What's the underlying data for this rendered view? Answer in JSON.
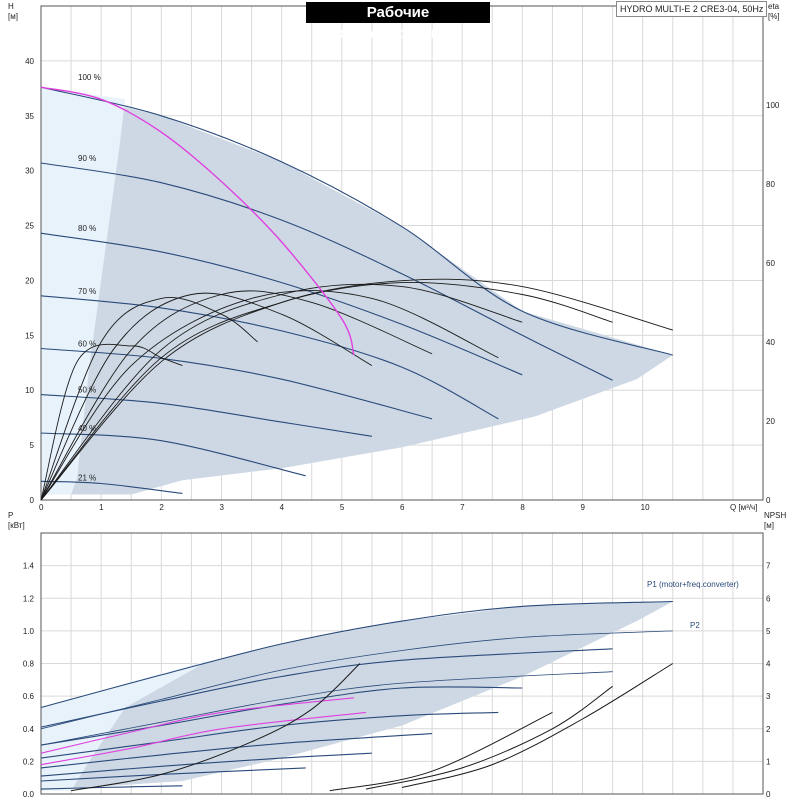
{
  "title": "Рабочие характеристики",
  "model": "HYDRO MULTI-E 2 CRE3-04, 50Hz",
  "colors": {
    "envelope": "#cdd8e4",
    "curve": "#2a4a7a",
    "magenta": "#e040e0",
    "efficiency": "#1a1a1a"
  },
  "chart_data": [
    {
      "type": "line",
      "panel": "top",
      "xlabel": "Q [м³/ч]",
      "ylabel_left": "H\n[м]",
      "ylabel_right": "eta\n[%]",
      "xlim": [
        0,
        12
      ],
      "ylim_left": [
        0,
        45
      ],
      "ylim_right": [
        0,
        125
      ],
      "x_ticks": [
        "0",
        "1",
        "2",
        "3",
        "4",
        "5",
        "6",
        "7",
        "8",
        "9",
        "10"
      ],
      "y_ticks_left": [
        "0",
        "5",
        "10",
        "15",
        "20",
        "25",
        "30",
        "35",
        "40"
      ],
      "y_ticks_right": [
        "0",
        "20",
        "40",
        "60",
        "80",
        "100"
      ],
      "speed_labels": [
        "100 %",
        "90 %",
        "80 %",
        "70 %",
        "60 %",
        "50 %",
        "40 %",
        "21 %"
      ],
      "head_curves": [
        {
          "name": "100 %",
          "points": [
            [
              0,
              37.6
            ],
            [
              2,
              35
            ],
            [
              4,
              30.8
            ],
            [
              6,
              24.9
            ],
            [
              8,
              17.2
            ],
            [
              10.5,
              13.2
            ]
          ]
        },
        {
          "name": "90 %",
          "points": [
            [
              0,
              30.7
            ],
            [
              2,
              28.9
            ],
            [
              4,
              25.5
            ],
            [
              6,
              20.6
            ],
            [
              8,
              15.0
            ],
            [
              9.5,
              10.9
            ]
          ]
        },
        {
          "name": "80 %",
          "points": [
            [
              0,
              24.3
            ],
            [
              2,
              22.6
            ],
            [
              4,
              19.8
            ],
            [
              6,
              16.0
            ],
            [
              8,
              11.4
            ]
          ]
        },
        {
          "name": "70 %",
          "points": [
            [
              0,
              18.6
            ],
            [
              2,
              17.5
            ],
            [
              4,
              15.4
            ],
            [
              6,
              12.1
            ],
            [
              7.6,
              7.4
            ]
          ]
        },
        {
          "name": "60 %",
          "points": [
            [
              0,
              13.8
            ],
            [
              2,
              12.9
            ],
            [
              4,
              11.0
            ],
            [
              6.5,
              7.4
            ]
          ]
        },
        {
          "name": "50 %",
          "points": [
            [
              0,
              9.6
            ],
            [
              2,
              8.8
            ],
            [
              4,
              7.1
            ],
            [
              5.5,
              5.8
            ]
          ]
        },
        {
          "name": "40 %",
          "points": [
            [
              0,
              6.1
            ],
            [
              2,
              5.4
            ],
            [
              4.4,
              2.2
            ]
          ]
        },
        {
          "name": "21 %",
          "points": [
            [
              0,
              1.7
            ],
            [
              1,
              1.5
            ],
            [
              2.35,
              0.6
            ]
          ]
        }
      ],
      "max_power_curve": {
        "points": [
          [
            0,
            37.6
          ],
          [
            1,
            36.5
          ],
          [
            2,
            33.5
          ],
          [
            3,
            29
          ],
          [
            4,
            23.5
          ],
          [
            5,
            16.5
          ],
          [
            5.2,
            13.2
          ]
        ]
      },
      "envelope": [
        [
          0,
          37.6
        ],
        [
          2,
          35
        ],
        [
          4,
          30.8
        ],
        [
          6,
          24.9
        ],
        [
          8,
          17.2
        ],
        [
          10.5,
          13.2
        ],
        [
          9.9,
          11
        ],
        [
          8.2,
          7.6
        ],
        [
          6,
          4.8
        ],
        [
          4,
          2.9
        ],
        [
          2.35,
          1.8
        ],
        [
          1.5,
          0.5
        ],
        [
          0,
          0.5
        ]
      ],
      "efficiency_curves": [
        {
          "name": "100 %",
          "points": [
            [
              0,
              0
            ],
            [
              2,
              35
            ],
            [
              4,
              50
            ],
            [
              6,
              55.5
            ],
            [
              8,
              54
            ],
            [
              10.5,
              43
            ]
          ]
        },
        {
          "name": "90 %",
          "points": [
            [
              0,
              0
            ],
            [
              2,
              36
            ],
            [
              4,
              50
            ],
            [
              6,
              55
            ],
            [
              8,
              52
            ],
            [
              9.5,
              45
            ]
          ]
        },
        {
          "name": "80 %",
          "points": [
            [
              0,
              0
            ],
            [
              2,
              38
            ],
            [
              4,
              52
            ],
            [
              6,
              54
            ],
            [
              8,
              45
            ]
          ]
        },
        {
          "name": "70 %",
          "points": [
            [
              0,
              0
            ],
            [
              1.5,
              34
            ],
            [
              3.5,
              51
            ],
            [
              5.5,
              51
            ],
            [
              7.6,
              36
            ]
          ]
        },
        {
          "name": "60 %",
          "points": [
            [
              0,
              0
            ],
            [
              1.5,
              38
            ],
            [
              3,
              52
            ],
            [
              4.5,
              50
            ],
            [
              6.5,
              37
            ]
          ]
        },
        {
          "name": "50 %",
          "points": [
            [
              0,
              0
            ],
            [
              1.2,
              38
            ],
            [
              2.5,
              52
            ],
            [
              4,
              47
            ],
            [
              5.5,
              34
            ]
          ]
        },
        {
          "name": "40 %",
          "points": [
            [
              0,
              0
            ],
            [
              1,
              40
            ],
            [
              2,
              51
            ],
            [
              3,
              47
            ],
            [
              3.6,
              40
            ]
          ]
        },
        {
          "name": "21 %",
          "points": [
            [
              0,
              0
            ],
            [
              0.6,
              35
            ],
            [
              1.5,
              39
            ],
            [
              2,
              36
            ],
            [
              2.35,
              34
            ]
          ]
        }
      ]
    },
    {
      "type": "line",
      "panel": "bottom",
      "xlabel": "",
      "ylabel_left": "P\n[кВт]",
      "ylabel_right": "NPSH\n[м]",
      "xlim": [
        0,
        12
      ],
      "ylim_left": [
        0,
        1.6
      ],
      "ylim_right": [
        0,
        8
      ],
      "y_ticks_left": [
        "0.0",
        "0.2",
        "0.4",
        "0.6",
        "0.8",
        "1.0",
        "1.2",
        "1.4"
      ],
      "y_ticks_right": [
        "0",
        "1",
        "2",
        "3",
        "4",
        "5",
        "6",
        "7"
      ],
      "series_labels": [
        "P1 (motor+freq.converter)",
        "P2"
      ],
      "p1_curves": [
        {
          "name": "100 %",
          "points": [
            [
              0,
              0.53
            ],
            [
              2,
              0.73
            ],
            [
              4,
              0.92
            ],
            [
              6,
              1.06
            ],
            [
              8,
              1.15
            ],
            [
              10.5,
              1.18
            ]
          ]
        },
        {
          "name": "90 %",
          "points": [
            [
              0,
              0.41
            ],
            [
              2,
              0.57
            ],
            [
              4,
              0.72
            ],
            [
              6,
              0.82
            ],
            [
              9.5,
              0.89
            ]
          ]
        },
        {
          "name": "80 %",
          "points": [
            [
              0,
              0.3
            ],
            [
              2,
              0.42
            ],
            [
              4,
              0.55
            ],
            [
              6,
              0.65
            ],
            [
              8,
              0.65
            ]
          ]
        },
        {
          "name": "70 %",
          "points": [
            [
              0,
              0.22
            ],
            [
              2,
              0.32
            ],
            [
              4,
              0.42
            ],
            [
              6,
              0.48
            ],
            [
              7.6,
              0.5
            ]
          ]
        },
        {
          "name": "60 %",
          "points": [
            [
              0,
              0.16
            ],
            [
              2,
              0.24
            ],
            [
              4,
              0.31
            ],
            [
              6.5,
              0.37
            ]
          ]
        },
        {
          "name": "50 %",
          "points": [
            [
              0,
              0.11
            ],
            [
              2,
              0.17
            ],
            [
              4,
              0.22
            ],
            [
              5.5,
              0.25
            ]
          ]
        },
        {
          "name": "40 %",
          "points": [
            [
              0,
              0.08
            ],
            [
              2,
              0.12
            ],
            [
              4.4,
              0.16
            ]
          ]
        },
        {
          "name": "21 %",
          "points": [
            [
              0,
              0.03
            ],
            [
              1,
              0.04
            ],
            [
              2.35,
              0.05
            ]
          ]
        }
      ],
      "p2_curves": [
        {
          "name": "100 %",
          "points": [
            [
              0,
              0.4
            ],
            [
              2,
              0.58
            ],
            [
              4,
              0.76
            ],
            [
              6,
              0.88
            ],
            [
              8,
              0.96
            ],
            [
              10.5,
              1.0
            ]
          ]
        },
        {
          "name": "90 %",
          "points": [
            [
              0,
              0.3
            ],
            [
              2,
              0.44
            ],
            [
              4,
              0.58
            ],
            [
              6,
              0.68
            ],
            [
              9.5,
              0.75
            ]
          ]
        }
      ],
      "npsh_curves": [
        {
          "points": [
            [
              6,
              0.2
            ],
            [
              7.5,
              0.9
            ],
            [
              9,
              2.3
            ],
            [
              10.5,
              4.0
            ]
          ]
        },
        {
          "points": [
            [
              5.4,
              0.15
            ],
            [
              7,
              0.8
            ],
            [
              8.5,
              2.0
            ],
            [
              9.5,
              3.3
            ]
          ]
        },
        {
          "points": [
            [
              4.8,
              0.1
            ],
            [
              6.5,
              0.7
            ],
            [
              8.5,
              2.5
            ]
          ]
        },
        {
          "points": [
            [
              0.5,
              0.1
            ],
            [
              2,
              0.6
            ],
            [
              3.5,
              1.6
            ],
            [
              4.5,
              2.6
            ],
            [
              5.3,
              4.0
            ]
          ]
        }
      ],
      "magenta_curves": [
        {
          "points": [
            [
              0,
              0.25
            ],
            [
              1.5,
              0.38
            ],
            [
              3,
              0.5
            ],
            [
              5.2,
              0.59
            ]
          ]
        },
        {
          "points": [
            [
              0,
              0.18
            ],
            [
              1.5,
              0.28
            ],
            [
              3,
              0.4
            ],
            [
              5.4,
              0.5
            ]
          ]
        }
      ],
      "envelope": [
        [
          0,
          0.53
        ],
        [
          2,
          0.73
        ],
        [
          4,
          0.92
        ],
        [
          6,
          1.06
        ],
        [
          8,
          1.15
        ],
        [
          10.5,
          1.18
        ],
        [
          9.9,
          1.06
        ],
        [
          8,
          0.72
        ],
        [
          6,
          0.42
        ],
        [
          4,
          0.22
        ],
        [
          2.35,
          0.08
        ],
        [
          0,
          0.02
        ]
      ]
    }
  ]
}
